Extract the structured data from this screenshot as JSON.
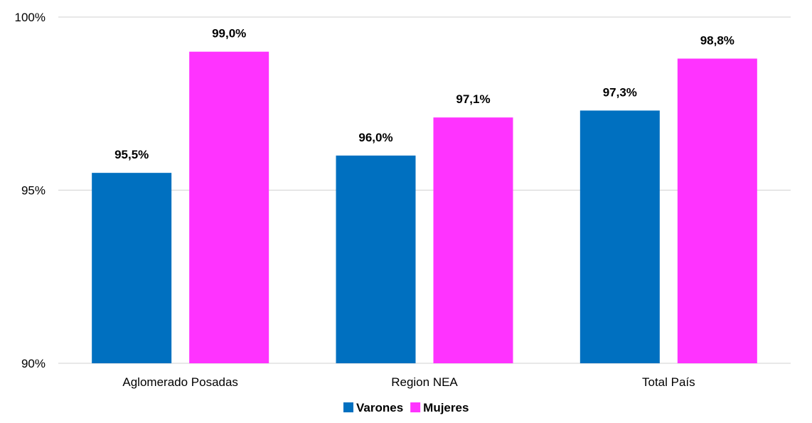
{
  "chart_data": {
    "type": "bar",
    "categories": [
      "Aglomerado Posadas",
      "Region NEA",
      "Total País"
    ],
    "series": [
      {
        "name": "Varones",
        "values": [
          95.5,
          96.0,
          97.3
        ],
        "labels": [
          "95,5%",
          "96,0%",
          "97,3%"
        ],
        "color": "#0070C0"
      },
      {
        "name": "Mujeres",
        "values": [
          99.0,
          97.1,
          98.8
        ],
        "labels": [
          "99,0%",
          "97,1%",
          "98,8%"
        ],
        "color": "#FF33FF"
      }
    ],
    "ylim": [
      90,
      100
    ],
    "yticks": [
      90,
      95,
      100
    ],
    "ytick_labels": [
      "90%",
      "95%",
      "100%"
    ],
    "grid": true,
    "legend": "bottom"
  }
}
